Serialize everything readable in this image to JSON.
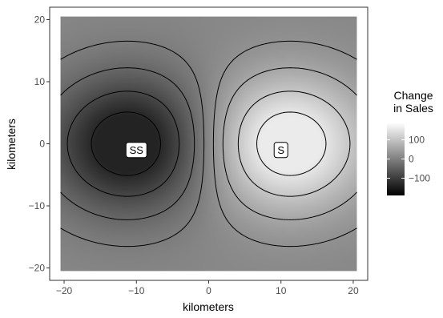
{
  "chart_data": {
    "type": "contour",
    "xlabel": "kilometers",
    "ylabel": "kilometers",
    "xlim": [
      -22,
      22
    ],
    "ylim": [
      -22,
      22
    ],
    "x_ticks": [
      -20,
      -10,
      0,
      10,
      20
    ],
    "y_ticks": [
      -20,
      -10,
      0,
      10,
      20
    ],
    "x_tick_labels": [
      "−20",
      "−10",
      "0",
      "10",
      "20"
    ],
    "y_tick_labels": [
      "−20",
      "−10",
      "0",
      "10",
      "20"
    ],
    "field_extent": {
      "x": [
        -20.5,
        20.5
      ],
      "y": [
        -20.5,
        20.5
      ]
    },
    "value_range": [
      -190,
      190
    ],
    "fill_scale": {
      "low": "#000000",
      "high": "#ffffff"
    },
    "contour_levels": [
      -180,
      -120,
      -60,
      -20,
      20,
      60,
      120,
      180
    ],
    "sources": [
      {
        "label": "SS",
        "x": -10,
        "y": -1,
        "peak_x": -11,
        "peak_y": 0,
        "sign": -1
      },
      {
        "label": "S",
        "x": 10,
        "y": -1,
        "peak_x": 11,
        "peak_y": 0,
        "sign": 1
      }
    ],
    "legend": {
      "title_line1": "Change",
      "title_line2": "in Sales",
      "breaks": [
        100,
        0,
        -100
      ],
      "break_labels": [
        "100",
        "0",
        "−100"
      ],
      "position": "right"
    },
    "theme": {
      "panel_border": "#333333",
      "grid": false
    }
  }
}
